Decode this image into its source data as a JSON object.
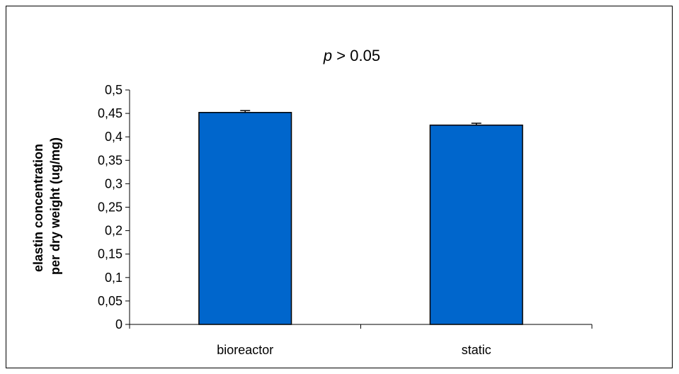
{
  "chart_data": {
    "type": "bar",
    "title_var": "p",
    "title_rest": " > 0.05",
    "ylabel_lines": [
      "elastin concentration",
      "per dry weight (ug/mg)"
    ],
    "categories": [
      "bioreactor",
      "static"
    ],
    "values": [
      0.452,
      0.425
    ],
    "errors": [
      0.004,
      0.004
    ],
    "ylim": [
      0,
      0.5
    ],
    "yticks": [
      0,
      0.05,
      0.1,
      0.15,
      0.2,
      0.25,
      0.3,
      0.35,
      0.4,
      0.45,
      0.5
    ],
    "ytick_labels": [
      "0",
      "0,05",
      "0,1",
      "0,15",
      "0,2",
      "0,25",
      "0,3",
      "0,35",
      "0,4",
      "0,45",
      "0,5"
    ],
    "bar_color": "#0066CC",
    "grid": false,
    "legend": "none"
  }
}
